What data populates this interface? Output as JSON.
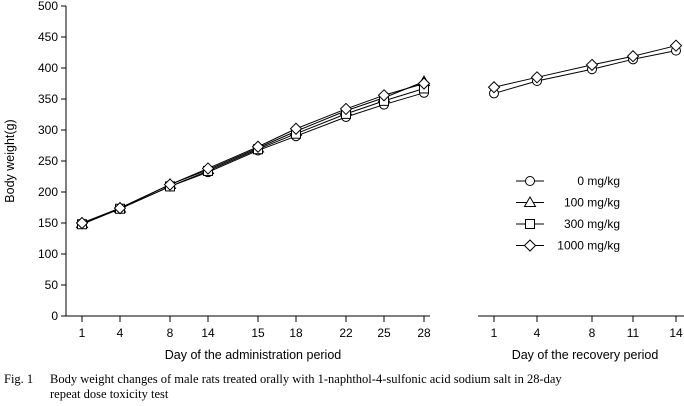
{
  "chart_data": {
    "type": "line",
    "ylabel": "Body weight(g)",
    "ylim": [
      0,
      500
    ],
    "yticks": [
      "0",
      "50",
      "100",
      "150",
      "200",
      "250",
      "300",
      "350",
      "400",
      "450",
      "500"
    ],
    "grid": false,
    "legend_position": "right",
    "panels": [
      {
        "xlabel": "Day of the administration period",
        "categories": [
          "1",
          "4",
          "8",
          "14",
          "15",
          "18",
          "22",
          "25",
          "28"
        ]
      },
      {
        "xlabel": "Day of the recovery period",
        "categories": [
          "1",
          "4",
          "8",
          "11",
          "14"
        ]
      }
    ],
    "series": [
      {
        "name": "0 mg/kg",
        "marker": "circle",
        "administration": [
          149,
          173,
          209,
          232,
          267,
          290,
          321,
          341,
          360
        ],
        "recovery": [
          359,
          379,
          398,
          414,
          428
        ]
      },
      {
        "name": "100 mg/kg",
        "marker": "triangle",
        "administration": [
          149,
          174,
          212,
          236,
          271,
          298,
          331,
          352,
          378
        ],
        "recovery": null
      },
      {
        "name": "300 mg/kg",
        "marker": "square",
        "administration": [
          148,
          173,
          209,
          234,
          269,
          294,
          326,
          347,
          367
        ],
        "recovery": null
      },
      {
        "name": "1000 mg/kg",
        "marker": "diamond",
        "administration": [
          150,
          174,
          212,
          238,
          273,
          302,
          334,
          356,
          375
        ],
        "recovery": [
          369,
          385,
          405,
          419,
          436
        ]
      }
    ]
  },
  "caption": {
    "number": "Fig. 1",
    "line1": "Body weight changes of male rats treated orally with 1-naphthol-4-sulfonic acid sodium salt in 28-day",
    "line2": "repeat dose toxicity test"
  }
}
